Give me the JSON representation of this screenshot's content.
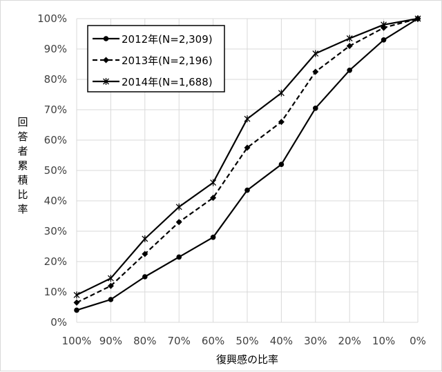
{
  "chart_data": {
    "type": "line",
    "title": "",
    "xlabel": "復興感の比率",
    "ylabel": "回答者累積比率",
    "x": [
      "100%",
      "90%",
      "80%",
      "70%",
      "60%",
      "50%",
      "40%",
      "30%",
      "20%",
      "10%",
      "0%"
    ],
    "yticks": [
      "0%",
      "10%",
      "20%",
      "30%",
      "40%",
      "50%",
      "60%",
      "70%",
      "80%",
      "90%",
      "100%"
    ],
    "ylim": [
      0,
      100
    ],
    "grid": true,
    "legend_position": "top-left",
    "series": [
      {
        "name": "2012年(N=2,309)",
        "marker": "circle",
        "line": "solid",
        "values": [
          4,
          7.5,
          15,
          21.5,
          28,
          43.5,
          52,
          70.5,
          83,
          93,
          100
        ]
      },
      {
        "name": "2013年(N=2,196)",
        "marker": "diamond",
        "line": "dashed",
        "values": [
          6.5,
          12,
          22.5,
          33,
          41,
          57.5,
          66,
          82.5,
          91,
          97,
          100
        ]
      },
      {
        "name": "2014年(N=1,688)",
        "marker": "star",
        "line": "solid",
        "values": [
          9,
          14.5,
          27.5,
          38,
          46,
          67,
          75.5,
          88.5,
          93.5,
          98,
          100
        ]
      }
    ],
    "colors": {
      "line": "#000000",
      "grid": "#d9d9d9",
      "tick_text": "#404040"
    }
  }
}
